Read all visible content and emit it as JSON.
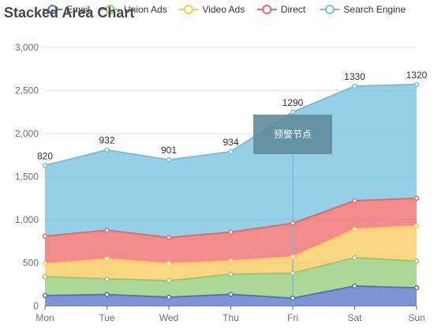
{
  "chart_data": {
    "type": "area",
    "title": "Stacked Area Chart",
    "stacked": true,
    "categories": [
      "Mon",
      "Tue",
      "Wed",
      "Thu",
      "Fri",
      "Sat",
      "Sun"
    ],
    "ylim": [
      0,
      3000
    ],
    "yticks": [
      0,
      500,
      1000,
      1500,
      2000,
      2500,
      3000
    ],
    "ytick_labels": [
      "0",
      "500",
      "1,000",
      "1,500",
      "2,000",
      "2,500",
      "3,000"
    ],
    "grid": true,
    "legend_position": "top",
    "series": [
      {
        "name": "Email",
        "values": [
          120,
          132,
          101,
          134,
          90,
          230,
          210
        ],
        "color": "#5470c6"
      },
      {
        "name": "Union Ads",
        "values": [
          220,
          182,
          191,
          234,
          290,
          330,
          310
        ],
        "color": "#91cc75"
      },
      {
        "name": "Video Ads",
        "values": [
          150,
          232,
          201,
          154,
          190,
          330,
          410
        ],
        "color": "#fac858"
      },
      {
        "name": "Direct",
        "values": [
          320,
          332,
          301,
          334,
          390,
          330,
          320
        ],
        "color": "#ee6666"
      },
      {
        "name": "Search Engine",
        "values": [
          820,
          932,
          901,
          934,
          1290,
          1330,
          1320
        ],
        "color": "#73c0de"
      }
    ],
    "data_labels": {
      "series": "Search Engine",
      "values": [
        "820",
        "932",
        "901",
        "934",
        "1290",
        "1330",
        "1320"
      ]
    },
    "mark_point": {
      "label": "预警节点",
      "category": "Fri",
      "color": "#5f8c9c"
    }
  }
}
